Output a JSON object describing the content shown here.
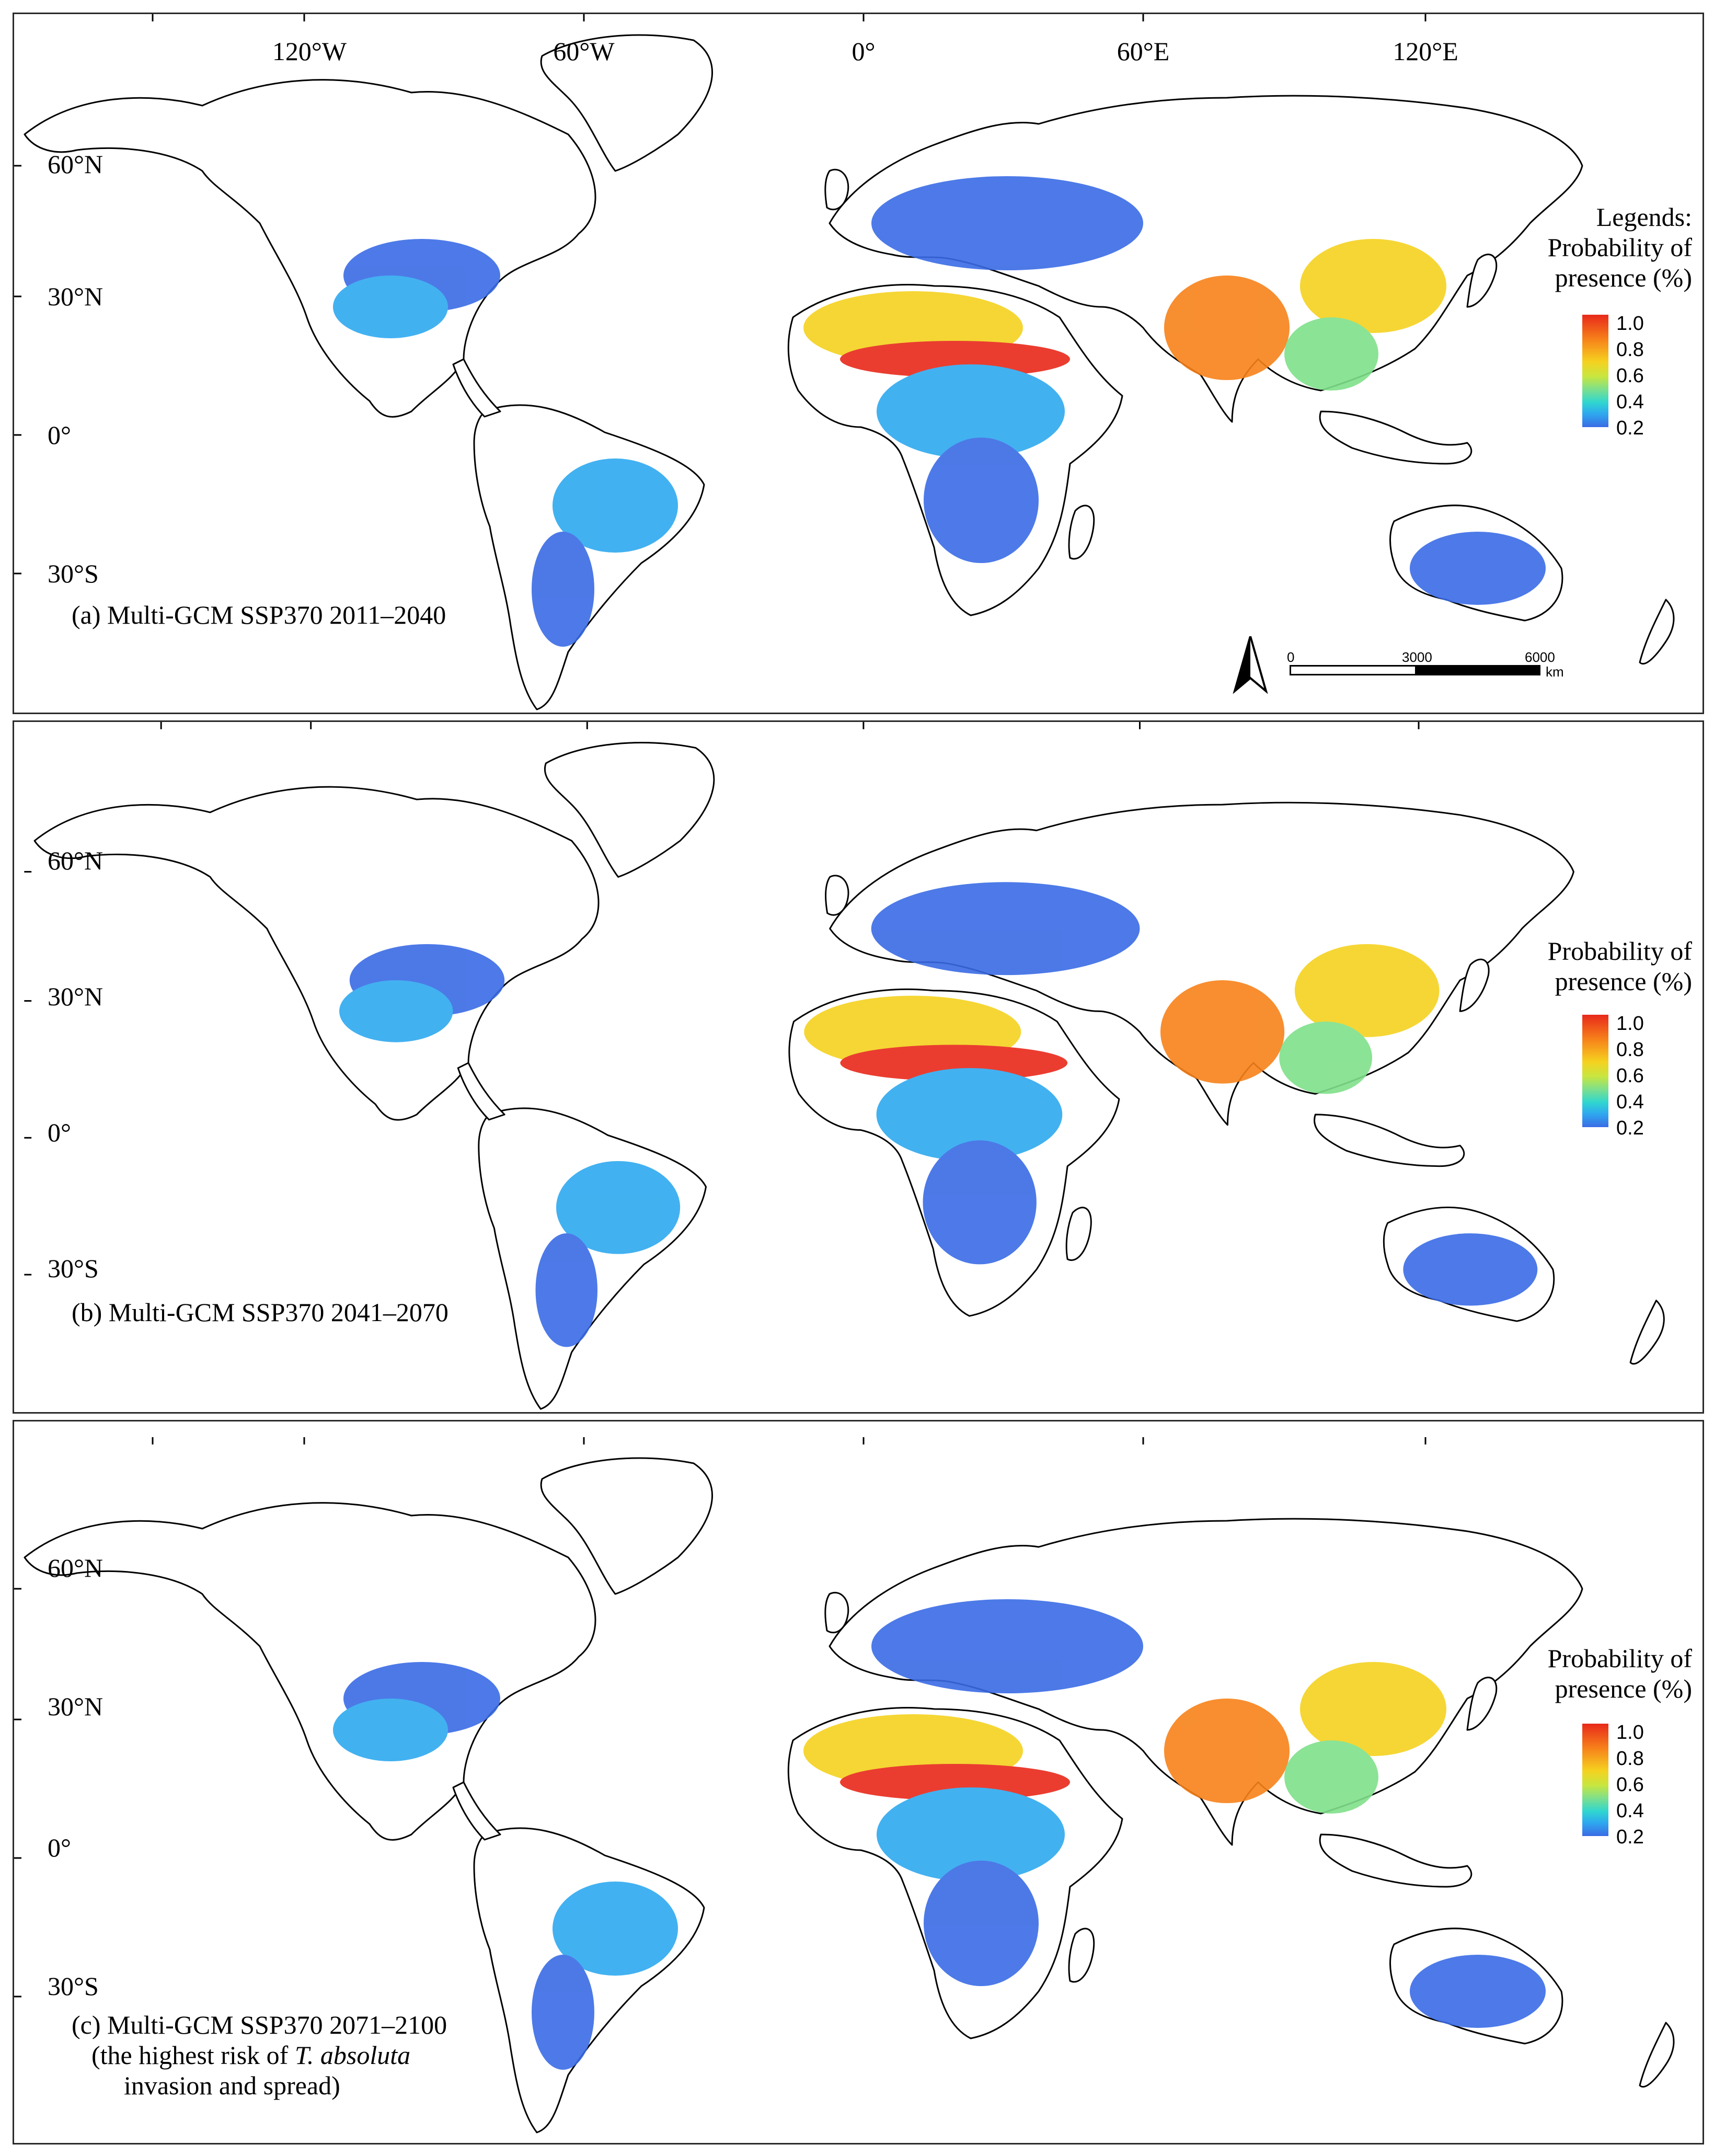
{
  "graticule": {
    "longitudes": [
      "120°W",
      "60°W",
      "0°",
      "60°E",
      "120°E"
    ],
    "latitudes": [
      "60°N",
      "30°N",
      "0°",
      "30°S"
    ]
  },
  "panels": [
    {
      "caption_lines": [
        "(a) Multi-GCM SSP370 2011–2040"
      ],
      "legend_heading": "Legends:",
      "legend_title_1": "Probability of",
      "legend_title_2": "presence (%)",
      "has_scalebar": true
    },
    {
      "caption_lines": [
        "(b) Multi-GCM SSP370 2041–2070"
      ],
      "legend_heading": "",
      "legend_title_1": "Probability of",
      "legend_title_2": "presence (%)",
      "has_scalebar": false
    },
    {
      "caption_lines": [
        "(c) Multi-GCM SSP370 2071–2100",
        "(the highest risk of ",
        "T. absoluta",
        "invasion and spread)"
      ],
      "legend_heading": "",
      "legend_title_1": "Probability of",
      "legend_title_2": "presence (%)",
      "has_scalebar": false
    }
  ],
  "legend_ticks": [
    "1.0",
    "0.8",
    "0.6",
    "0.4",
    "0.2"
  ],
  "colorscale": {
    "high": "#e8291a",
    "mid_high": "#f7821a",
    "mid": "#f5d21f",
    "mid_low": "#7fe08a",
    "low_mid": "#2ea9ef",
    "low": "#3a6be5"
  },
  "scalebar": {
    "labels": [
      "0",
      "3000",
      "6000"
    ],
    "unit": "km"
  },
  "north_arrow_icon": "north-arrow-icon"
}
